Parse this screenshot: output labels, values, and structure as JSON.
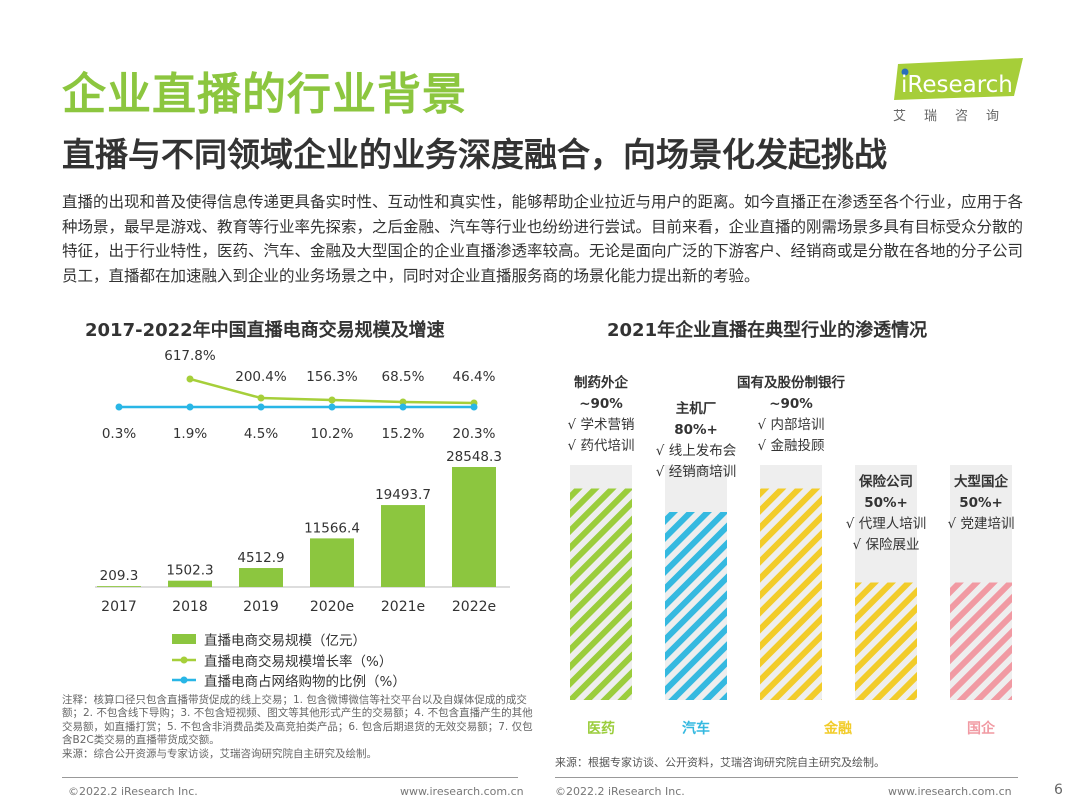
{
  "header": {
    "title": "企业直播的行业背景",
    "subtitle": "直播与不同领域企业的业务深度融合，向场景化发起挑战",
    "logo_text": "iResearch",
    "logo_sub": "艾瑞咨询"
  },
  "intro": "直播的出现和普及使得信息传递更具备实时性、互动性和真实性，能够帮助企业拉近与用户的距离。如今直播正在渗透至各个行业，应用于各种场景，最早是游戏、教育等行业率先探索，之后金融、汽车等行业也纷纷进行尝试。目前来看，企业直播的刚需场景多具有目标受众分散的特征，出于行业特性，医药、汽车、金融及大型国企的企业直播渗透率较高。无论是面向广泛的下游客户、经销商或是分散在各地的分子公司员工，直播都在加速融入到企业的业务场景之中，同时对企业直播服务商的场景化能力提出新的考验。",
  "chart_data": [
    {
      "type": "bar+line",
      "title": "2017-2022年中国直播电商交易规模及增速",
      "categories": [
        "2017",
        "2018",
        "2019",
        "2020e",
        "2021e",
        "2022e"
      ],
      "series": [
        {
          "name": "直播电商交易规模（亿元）",
          "type": "bar",
          "color": "#8cc63f",
          "values": [
            209.3,
            1502.3,
            4512.9,
            11566.4,
            19493.7,
            28548.3
          ],
          "labels": [
            "209.3",
            "1502.3",
            "4512.9",
            "11566.4",
            "19493.7",
            "28548.3"
          ]
        },
        {
          "name": "直播电商交易规模增长率（%）",
          "type": "line",
          "color": "#a6cf3a",
          "values": [
            null,
            617.8,
            200.4,
            156.3,
            68.5,
            46.4
          ],
          "labels": [
            "",
            "617.8%",
            "200.4%",
            "156.3%",
            "68.5%",
            "46.4%"
          ]
        },
        {
          "name": "直播电商占网络购物的比例（%）",
          "type": "line",
          "color": "#29b6e6",
          "values": [
            0.3,
            1.9,
            4.5,
            10.2,
            15.2,
            20.3
          ],
          "labels": [
            "0.3%",
            "1.9%",
            "4.5%",
            "10.2%",
            "15.2%",
            "20.3%"
          ]
        }
      ],
      "note": "注释：核算口径只包含直播带货促成的线上交易；1. 包含微博微信等社交平台以及自媒体促成的成交额；2. 不包含线下导购；3. 不包含短视频、图文等其他形式产生的交易额；4. 不包含直播产生的其他交易额，如直播打赏；5. 不包含非消费品类及高竞拍类产品；6. 包含后期退货的无效交易额；7. 仅包含B2C类交易的直播带货成交额。",
      "source": "来源：综合公开资源与专家访谈，艾瑞咨询研究院自主研究及绘制。"
    },
    {
      "type": "bar",
      "title": "2021年企业直播在典型行业的渗透情况",
      "columns": [
        {
          "name": "制药外企",
          "rate_label": "~90%",
          "value": 90,
          "items": [
            "√ 学术营销",
            "√ 药代培训"
          ],
          "color": "#9bcd3c"
        },
        {
          "name": "主机厂",
          "rate_label": "80%+",
          "value": 80,
          "items": [
            "√ 线上发布会",
            "√ 经销商培训"
          ],
          "color": "#35b9e0"
        },
        {
          "name": "国有及股份制银行",
          "rate_label": "~90%",
          "value": 90,
          "items": [
            "√ 内部培训",
            "√ 金融投顾"
          ],
          "color": "#f2cc2a"
        },
        {
          "name": "保险公司",
          "rate_label": "50%+",
          "value": 50,
          "items": [
            "√ 代理人培训",
            "√ 保险展业"
          ],
          "color": "#f2cc2a"
        },
        {
          "name": "大型国企",
          "rate_label": "50%+",
          "value": 50,
          "items": [
            "√ 党建培训"
          ],
          "color": "#f19aa3"
        }
      ],
      "industries": [
        {
          "label": "医药",
          "color": "#9bcd3c"
        },
        {
          "label": "汽车",
          "color": "#35b9e0"
        },
        {
          "label": "金融",
          "color": "#f2cc2a"
        },
        {
          "label": "国企",
          "color": "#f19aa3"
        }
      ],
      "source": "来源：根据专家访谈、公开资料，艾瑞咨询研究院自主研究及绘制。"
    }
  ],
  "footer": {
    "copyright": "©2022.2 iResearch Inc.",
    "url": "www.iresearch.com.cn",
    "page": "6"
  }
}
